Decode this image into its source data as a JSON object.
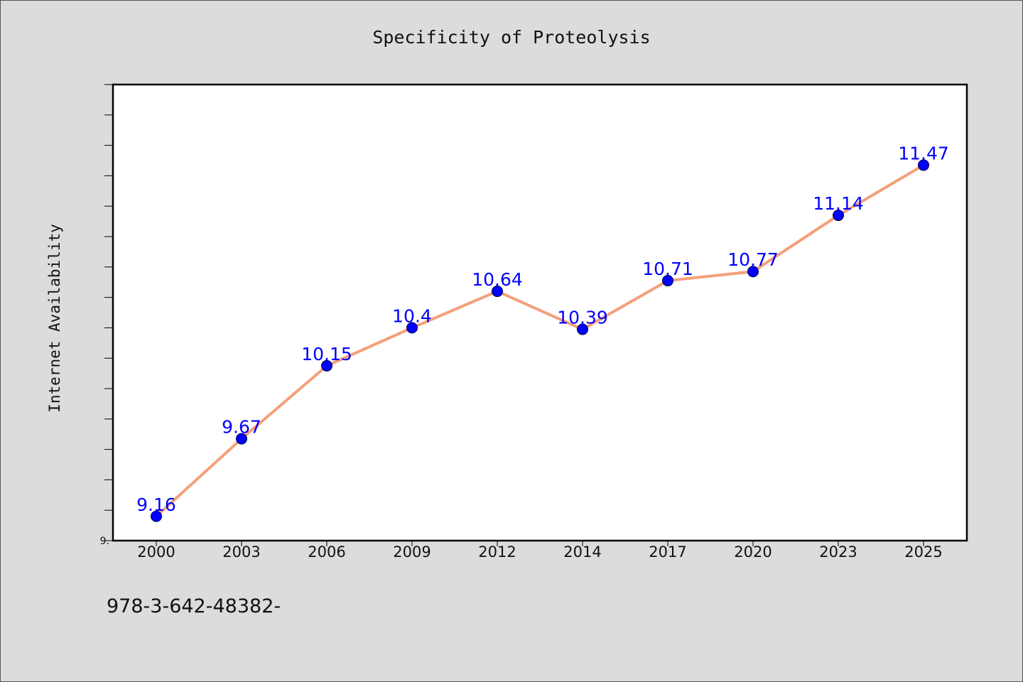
{
  "chart_data": {
    "type": "line",
    "title": "Specificity of Proteolysis",
    "xlabel": "",
    "ylabel": "Internet Availability",
    "categories": [
      "2000",
      "2003",
      "2006",
      "2009",
      "2012",
      "2014",
      "2017",
      "2020",
      "2023",
      "2025"
    ],
    "series": [
      {
        "values": [
          9.16,
          9.67,
          10.15,
          10.4,
          10.64,
          10.39,
          10.71,
          10.77,
          11.14,
          11.47
        ]
      }
    ],
    "data_labels": [
      "9.16",
      "9.67",
      "10.15",
      "10.4",
      "10.64",
      "10.39",
      "10.71",
      "10.77",
      "11.14",
      "11.47"
    ],
    "ylim": [
      9.0,
      12.0
    ],
    "y_tick_label": "9.",
    "grid": false,
    "legend": "none",
    "colors": {
      "line": "#f4a07a",
      "marker": "#0000ff",
      "marker_edge": "#000044",
      "data_label": "#0000ff",
      "plot_background": "#ffffff",
      "page_background": "#dcdcdc"
    }
  },
  "footer": {
    "text": "978-3-642-48382-"
  }
}
